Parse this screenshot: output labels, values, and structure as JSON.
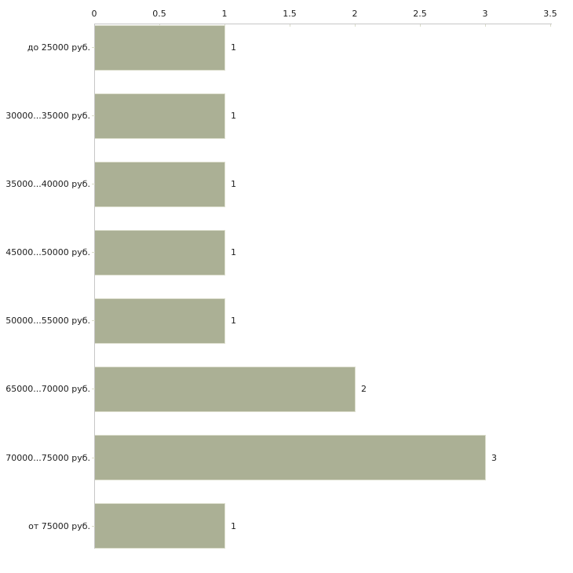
{
  "chart_data": {
    "type": "bar",
    "orientation": "horizontal",
    "title": "",
    "xlabel": "",
    "ylabel": "",
    "categories": [
      "до 25000 руб.",
      "30000...35000 руб.",
      "35000...40000 руб.",
      "45000...50000 руб.",
      "50000...55000 руб.",
      "65000...70000 руб.",
      "70000...75000 руб.",
      "от 75000 руб."
    ],
    "values": [
      1,
      1,
      1,
      1,
      1,
      2,
      3,
      1
    ],
    "value_labels": [
      "1",
      "1",
      "1",
      "1",
      "1",
      "2",
      "3",
      "1"
    ],
    "x_ticks": [
      "0",
      "0.5",
      "1",
      "1.5",
      "2",
      "2.5",
      "3",
      "3.5"
    ],
    "xlim": [
      0,
      3.5
    ],
    "axis_position": "top",
    "grid": false,
    "legend": false,
    "bar_color": "#abb095",
    "bar_border_color": "#dcdecd",
    "axis_line_color": "#c6c6c6",
    "tick_mark_color": "#d9dbc9",
    "text_color": "#1c1c1c",
    "background_color": "#ffffff"
  }
}
